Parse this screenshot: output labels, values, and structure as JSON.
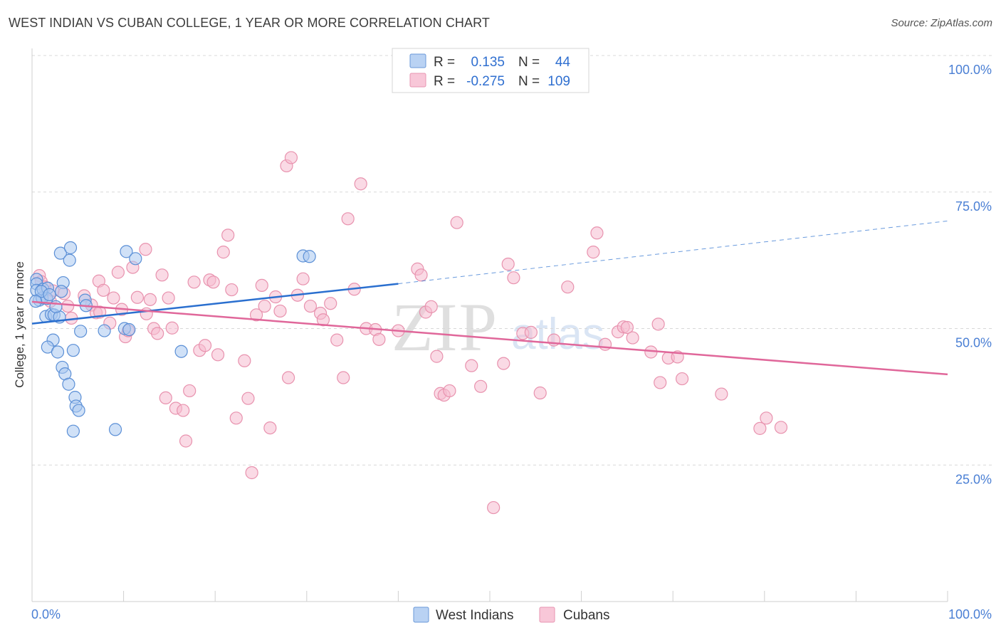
{
  "header": {
    "title": "WEST INDIAN VS CUBAN COLLEGE, 1 YEAR OR MORE CORRELATION CHART",
    "source": "Source: ZipAtlas.com"
  },
  "watermark": {
    "part1": "ZIP",
    "part2": "atlas"
  },
  "legend": {
    "west_indians": {
      "r_label": "R =",
      "r_value": "0.135",
      "n_label": "N =",
      "n_value": "44"
    },
    "cubans": {
      "r_label": "R =",
      "r_value": "-0.275",
      "n_label": "N =",
      "n_value": "109"
    }
  },
  "bottom_legend": {
    "west_indians": "West Indians",
    "cubans": "Cubans"
  },
  "colors": {
    "west_indians_fill": "#a9c8f0",
    "west_indians_stroke": "#5b8fd6",
    "west_indians_line": "#2a6fcf",
    "cubans_fill": "#f6bcd0",
    "cubans_stroke": "#e892ae",
    "cubans_line": "#e0679a",
    "tick_label": "#4a7fd4",
    "grid": "#d8d8d8"
  },
  "chart_data": {
    "type": "scatter",
    "title": "WEST INDIAN VS CUBAN COLLEGE, 1 YEAR OR MORE CORRELATION CHART",
    "xlabel": "",
    "ylabel": "College, 1 year or more",
    "xlim": [
      0,
      100
    ],
    "ylim": [
      0,
      100
    ],
    "x_tick_labels": [
      "0.0%",
      "100.0%"
    ],
    "y_tick_labels": [
      "100.0%",
      "75.0%",
      "50.0%",
      "25.0%"
    ],
    "y_tick_values": [
      100,
      75,
      50,
      25
    ],
    "grid": "horizontal dashed",
    "legend_placement": "top-center",
    "series": [
      {
        "name": "West Indians",
        "r": 0.135,
        "n": 44,
        "trend": {
          "x_start": 0,
          "y_start": 50.9,
          "x_end": 40,
          "y_end": 58.2,
          "dashed_to_x": 100,
          "dashed_to_y": 69.7
        },
        "points": [
          [
            0.5,
            59
          ],
          [
            0.5,
            58.2
          ],
          [
            0.5,
            57
          ],
          [
            0.8,
            55.2
          ],
          [
            1.1,
            55.6
          ],
          [
            1.2,
            57.2
          ],
          [
            1.7,
            57.4
          ],
          [
            1.6,
            55.5
          ],
          [
            1.5,
            52.2
          ],
          [
            2.1,
            52.6
          ],
          [
            2.4,
            52.5
          ],
          [
            2.3,
            47.9
          ],
          [
            1.7,
            46.6
          ],
          [
            2.8,
            45.7
          ],
          [
            3.3,
            42.9
          ],
          [
            3.6,
            41.7
          ],
          [
            4.0,
            39.8
          ],
          [
            4.7,
            37.4
          ],
          [
            4.8,
            35.8
          ],
          [
            5.1,
            35.0
          ],
          [
            4.5,
            31.2
          ],
          [
            9.1,
            31.5
          ],
          [
            3.1,
            63.8
          ],
          [
            4.2,
            64.8
          ],
          [
            4.1,
            62.5
          ],
          [
            3.4,
            58.4
          ],
          [
            3.0,
            52.1
          ],
          [
            5.8,
            55.2
          ],
          [
            5.9,
            54.2
          ],
          [
            5.3,
            49.5
          ],
          [
            7.9,
            49.6
          ],
          [
            10.1,
            50.0
          ],
          [
            10.6,
            49.8
          ],
          [
            10.3,
            64.1
          ],
          [
            11.3,
            62.8
          ],
          [
            4.5,
            46.0
          ],
          [
            16.3,
            45.8
          ],
          [
            29.6,
            63.3
          ],
          [
            30.3,
            63.2
          ],
          [
            1.0,
            56.8
          ],
          [
            0.4,
            55.0
          ],
          [
            1.9,
            56.2
          ],
          [
            3.2,
            56.8
          ],
          [
            2.6,
            54.0
          ]
        ]
      },
      {
        "name": "Cubans",
        "r": -0.275,
        "n": 109,
        "trend": {
          "x_start": 0,
          "y_start": 54.9,
          "x_end": 100,
          "y_end": 41.6
        },
        "points": [
          [
            0.8,
            59.7
          ],
          [
            1.0,
            58.6
          ],
          [
            1.4,
            57.6
          ],
          [
            2.3,
            56.9
          ],
          [
            3.5,
            56.4
          ],
          [
            3.9,
            54.1
          ],
          [
            4.3,
            51.9
          ],
          [
            5.7,
            56.0
          ],
          [
            6.5,
            54.3
          ],
          [
            7.0,
            52.9
          ],
          [
            7.3,
            58.7
          ],
          [
            7.8,
            57.0
          ],
          [
            8.5,
            51.0
          ],
          [
            8.9,
            55.6
          ],
          [
            9.4,
            60.3
          ],
          [
            9.8,
            53.5
          ],
          [
            10.2,
            48.5
          ],
          [
            10.5,
            49.6
          ],
          [
            11.0,
            61.2
          ],
          [
            11.5,
            55.7
          ],
          [
            12.4,
            64.5
          ],
          [
            12.5,
            52.7
          ],
          [
            12.9,
            55.3
          ],
          [
            13.3,
            50.0
          ],
          [
            13.7,
            49.1
          ],
          [
            14.2,
            59.8
          ],
          [
            14.6,
            37.3
          ],
          [
            14.9,
            55.6
          ],
          [
            15.3,
            50.1
          ],
          [
            15.7,
            35.4
          ],
          [
            16.5,
            35.0
          ],
          [
            16.8,
            29.4
          ],
          [
            17.2,
            38.6
          ],
          [
            17.7,
            58.5
          ],
          [
            18.3,
            46.0
          ],
          [
            18.9,
            46.9
          ],
          [
            19.4,
            58.9
          ],
          [
            19.8,
            58.5
          ],
          [
            20.3,
            45.2
          ],
          [
            20.9,
            64.0
          ],
          [
            21.4,
            67.1
          ],
          [
            21.8,
            57.1
          ],
          [
            22.3,
            33.6
          ],
          [
            23.2,
            44.1
          ],
          [
            23.6,
            37.2
          ],
          [
            24.0,
            23.6
          ],
          [
            24.5,
            52.5
          ],
          [
            25.1,
            57.9
          ],
          [
            25.4,
            54.1
          ],
          [
            26.0,
            31.8
          ],
          [
            26.6,
            55.8
          ],
          [
            27.1,
            53.2
          ],
          [
            27.8,
            79.8
          ],
          [
            28.3,
            81.3
          ],
          [
            28.0,
            41.0
          ],
          [
            29.0,
            56.1
          ],
          [
            29.6,
            59.1
          ],
          [
            30.4,
            54.1
          ],
          [
            31.5,
            52.8
          ],
          [
            31.8,
            51.6
          ],
          [
            32.6,
            54.6
          ],
          [
            33.3,
            47.9
          ],
          [
            34.0,
            41.0
          ],
          [
            34.5,
            70.1
          ],
          [
            35.2,
            57.2
          ],
          [
            35.9,
            76.5
          ],
          [
            36.5,
            50.0
          ],
          [
            37.5,
            49.8
          ],
          [
            37.9,
            48.0
          ],
          [
            40.0,
            49.6
          ],
          [
            42.1,
            60.9
          ],
          [
            42.5,
            59.8
          ],
          [
            43.0,
            53.0
          ],
          [
            43.6,
            54.0
          ],
          [
            44.2,
            44.9
          ],
          [
            44.6,
            38.1
          ],
          [
            45.0,
            37.8
          ],
          [
            45.6,
            38.6
          ],
          [
            46.4,
            69.4
          ],
          [
            48.0,
            43.2
          ],
          [
            49.0,
            39.4
          ],
          [
            50.4,
            17.2
          ],
          [
            51.5,
            43.6
          ],
          [
            52.0,
            61.8
          ],
          [
            52.6,
            59.3
          ],
          [
            53.6,
            49.1
          ],
          [
            54.5,
            49.3
          ],
          [
            55.5,
            38.2
          ],
          [
            57.0,
            47.9
          ],
          [
            58.5,
            57.6
          ],
          [
            61.3,
            64.0
          ],
          [
            61.7,
            67.5
          ],
          [
            62.6,
            47.1
          ],
          [
            64.0,
            49.4
          ],
          [
            64.6,
            50.3
          ],
          [
            65.0,
            50.2
          ],
          [
            65.6,
            48.3
          ],
          [
            67.6,
            45.7
          ],
          [
            68.6,
            40.1
          ],
          [
            68.4,
            50.8
          ],
          [
            69.5,
            44.6
          ],
          [
            70.5,
            44.8
          ],
          [
            71.0,
            40.8
          ],
          [
            75.3,
            38.0
          ],
          [
            79.5,
            31.7
          ],
          [
            80.2,
            33.6
          ],
          [
            81.8,
            31.9
          ],
          [
            7.4,
            53.0
          ],
          [
            2.0,
            55.0
          ]
        ]
      }
    ]
  }
}
